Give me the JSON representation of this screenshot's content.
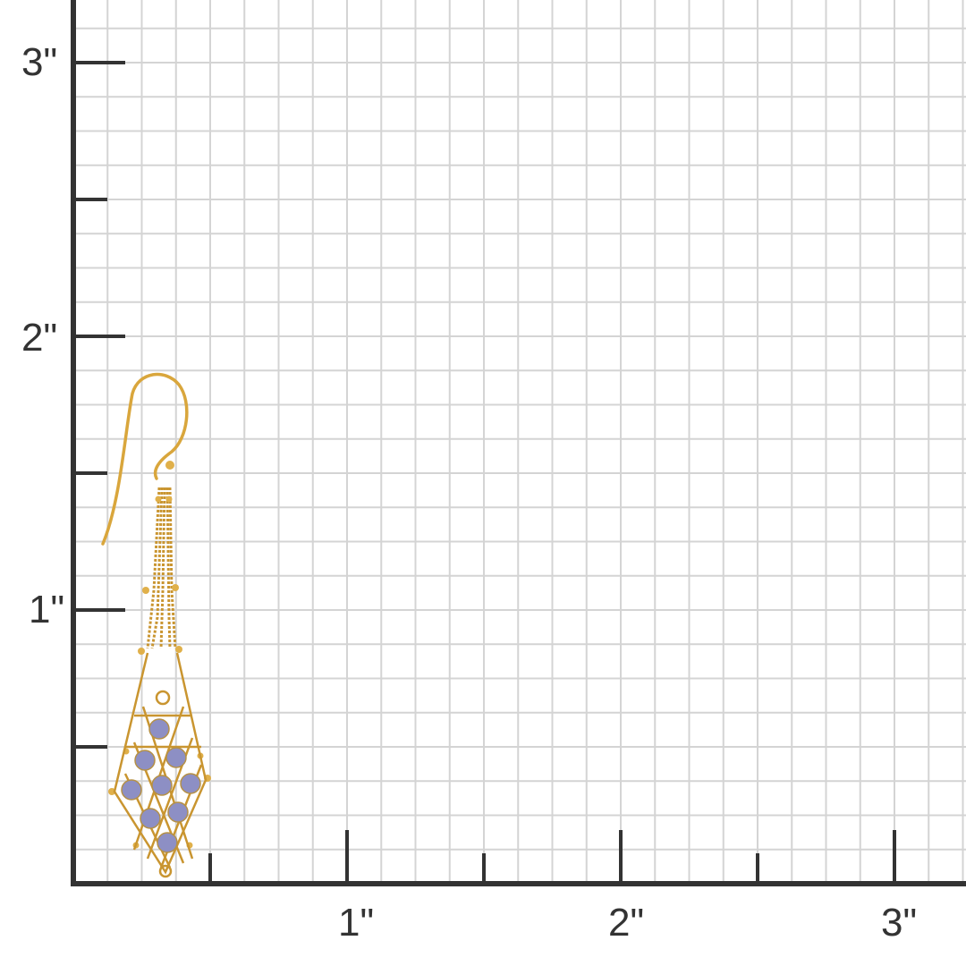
{
  "ruler": {
    "unit_marks_y": [
      "1\"",
      "2\"",
      "3\""
    ],
    "unit_marks_x": [
      "1\"",
      "2\"",
      "3\""
    ],
    "grid_subdivisions_per_inch": 8,
    "axis_color": "#333333",
    "grid_color": "#d4d4d4"
  },
  "product": {
    "type": "earring",
    "metal_color": "#d9a63c",
    "stone_color": "#8d8fc4"
  }
}
